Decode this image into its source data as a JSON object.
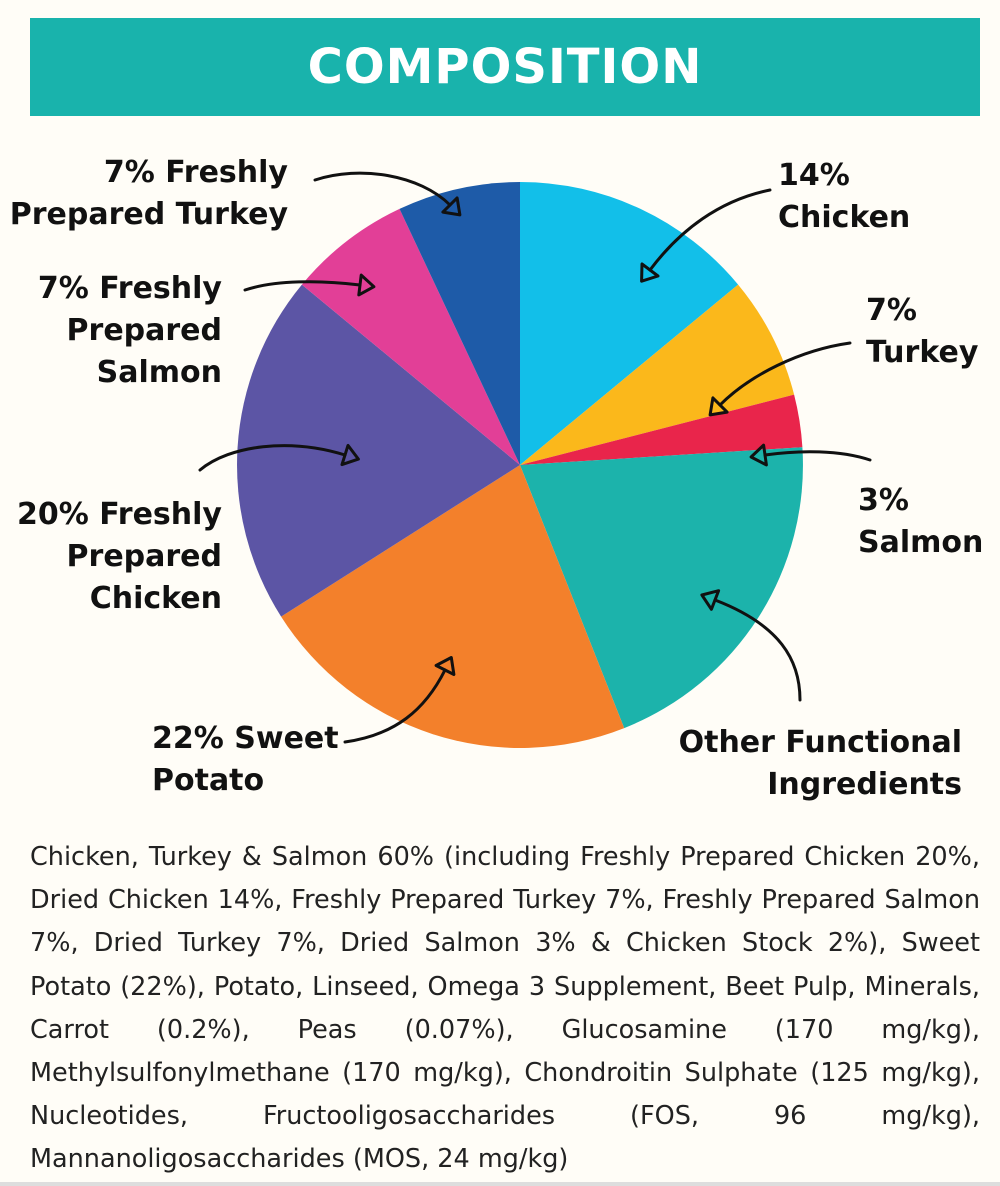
{
  "header": {
    "title": "COMPOSITION"
  },
  "chart_data": {
    "type": "pie",
    "slices": [
      {
        "label": [
          "14%",
          "Chicken"
        ],
        "value": 14,
        "color": "#12bfe9"
      },
      {
        "label": [
          "7%",
          "Turkey"
        ],
        "value": 7,
        "color": "#fbb81b"
      },
      {
        "label": [
          "3%",
          "Salmon"
        ],
        "value": 3,
        "color": "#e9254b"
      },
      {
        "label": [
          "Other Functional",
          "Ingredients"
        ],
        "value": 20,
        "color": "#1cb3ab"
      },
      {
        "label": [
          "22% Sweet",
          "Potato"
        ],
        "value": 22,
        "color": "#f3802b"
      },
      {
        "label": [
          "20% Freshly",
          "Prepared",
          "Chicken"
        ],
        "value": 20,
        "color": "#5c55a5"
      },
      {
        "label": [
          "7% Freshly",
          "Prepared",
          "Salmon"
        ],
        "value": 7,
        "color": "#e23f97"
      },
      {
        "label": [
          "7% Freshly",
          "Prepared Turkey"
        ],
        "value": 7,
        "color": "#1e5ba8"
      }
    ]
  },
  "ingredients_text": "Chicken, Turkey & Salmon 60% (including Freshly Prepared Chicken 20%, Dried Chicken 14%, Freshly Prepared Turkey 7%, Freshly Prepared Salmon 7%, Dried Turkey 7%, Dried Salmon 3% & Chicken Stock 2%), Sweet Potato (22%), Potato, Linseed, Omega 3 Supplement, Beet Pulp, Minerals, Carrot (0.2%), Peas (0.07%), Glucosamine (170 mg/kg), Methylsulfonylmethane (170 mg/kg), Chondroitin Sulphate (125 mg/kg), Nucleotides, Fructooligosaccharides (FOS, 96 mg/kg), Mannanoligosaccharides (MOS, 24 mg/kg)"
}
